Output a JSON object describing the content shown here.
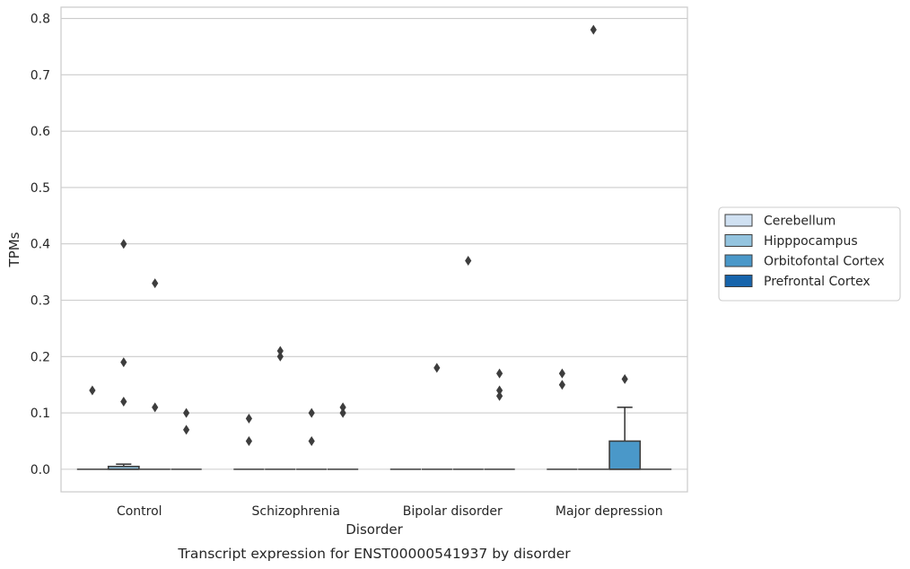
{
  "chart_data": {
    "type": "box",
    "xlabel": "Disorder",
    "ylabel": "TPMs",
    "caption": "Transcript expression for ENST00000541937 by disorder",
    "ylim": [
      -0.04,
      0.82
    ],
    "yticks": [
      "0.0",
      "0.1",
      "0.2",
      "0.3",
      "0.4",
      "0.5",
      "0.6",
      "0.7",
      "0.8"
    ],
    "ytick_values": [
      0.0,
      0.1,
      0.2,
      0.3,
      0.4,
      0.5,
      0.6,
      0.7,
      0.8
    ],
    "grid": true,
    "legend_position": "right",
    "categories": [
      "Control",
      "Schizophrenia",
      "Bipolar disorder",
      "Major depression"
    ],
    "series": [
      {
        "name": "Cerebellum",
        "color": "#d0e1f2",
        "boxes": [
          {
            "q1": 0,
            "median": 0,
            "q3": 0,
            "whisker_low": 0,
            "whisker_high": 0,
            "outliers": [
              0.14
            ]
          },
          {
            "q1": 0,
            "median": 0,
            "q3": 0,
            "whisker_low": 0,
            "whisker_high": 0,
            "outliers": [
              0.09,
              0.05
            ]
          },
          {
            "q1": 0,
            "median": 0,
            "q3": 0,
            "whisker_low": 0,
            "whisker_high": 0,
            "outliers": []
          },
          {
            "q1": 0,
            "median": 0,
            "q3": 0,
            "whisker_low": 0,
            "whisker_high": 0,
            "outliers": [
              0.17,
              0.15
            ]
          }
        ]
      },
      {
        "name": "Hipppocampus",
        "color": "#94c4df",
        "boxes": [
          {
            "q1": 0,
            "median": 0,
            "q3": 0.005,
            "whisker_low": 0,
            "whisker_high": 0.009,
            "outliers": [
              0.4,
              0.19,
              0.12
            ]
          },
          {
            "q1": 0,
            "median": 0,
            "q3": 0,
            "whisker_low": 0,
            "whisker_high": 0,
            "outliers": [
              0.21,
              0.2
            ]
          },
          {
            "q1": 0,
            "median": 0,
            "q3": 0,
            "whisker_low": 0,
            "whisker_high": 0,
            "outliers": [
              0.18
            ]
          },
          {
            "q1": 0,
            "median": 0,
            "q3": 0,
            "whisker_low": 0,
            "whisker_high": 0,
            "outliers": [
              0.78
            ]
          }
        ]
      },
      {
        "name": "Orbitofontal Cortex",
        "color": "#4a98c9",
        "boxes": [
          {
            "q1": 0,
            "median": 0,
            "q3": 0,
            "whisker_low": 0,
            "whisker_high": 0,
            "outliers": [
              0.33,
              0.11
            ]
          },
          {
            "q1": 0,
            "median": 0,
            "q3": 0,
            "whisker_low": 0,
            "whisker_high": 0,
            "outliers": [
              0.1,
              0.05
            ]
          },
          {
            "q1": 0,
            "median": 0,
            "q3": 0,
            "whisker_low": 0,
            "whisker_high": 0,
            "outliers": [
              0.37
            ]
          },
          {
            "q1": 0,
            "median": 0,
            "q3": 0.05,
            "whisker_low": 0,
            "whisker_high": 0.11,
            "outliers": [
              0.16
            ]
          }
        ]
      },
      {
        "name": "Prefrontal Cortex",
        "color": "#1764ab",
        "boxes": [
          {
            "q1": 0,
            "median": 0,
            "q3": 0,
            "whisker_low": 0,
            "whisker_high": 0,
            "outliers": [
              0.1,
              0.07
            ]
          },
          {
            "q1": 0,
            "median": 0,
            "q3": 0,
            "whisker_low": 0,
            "whisker_high": 0,
            "outliers": [
              0.11,
              0.1
            ]
          },
          {
            "q1": 0,
            "median": 0,
            "q3": 0,
            "whisker_low": 0,
            "whisker_high": 0,
            "outliers": [
              0.17,
              0.14,
              0.13
            ]
          },
          {
            "q1": 0,
            "median": 0,
            "q3": 0,
            "whisker_low": 0,
            "whisker_high": 0,
            "outliers": []
          }
        ]
      }
    ]
  }
}
